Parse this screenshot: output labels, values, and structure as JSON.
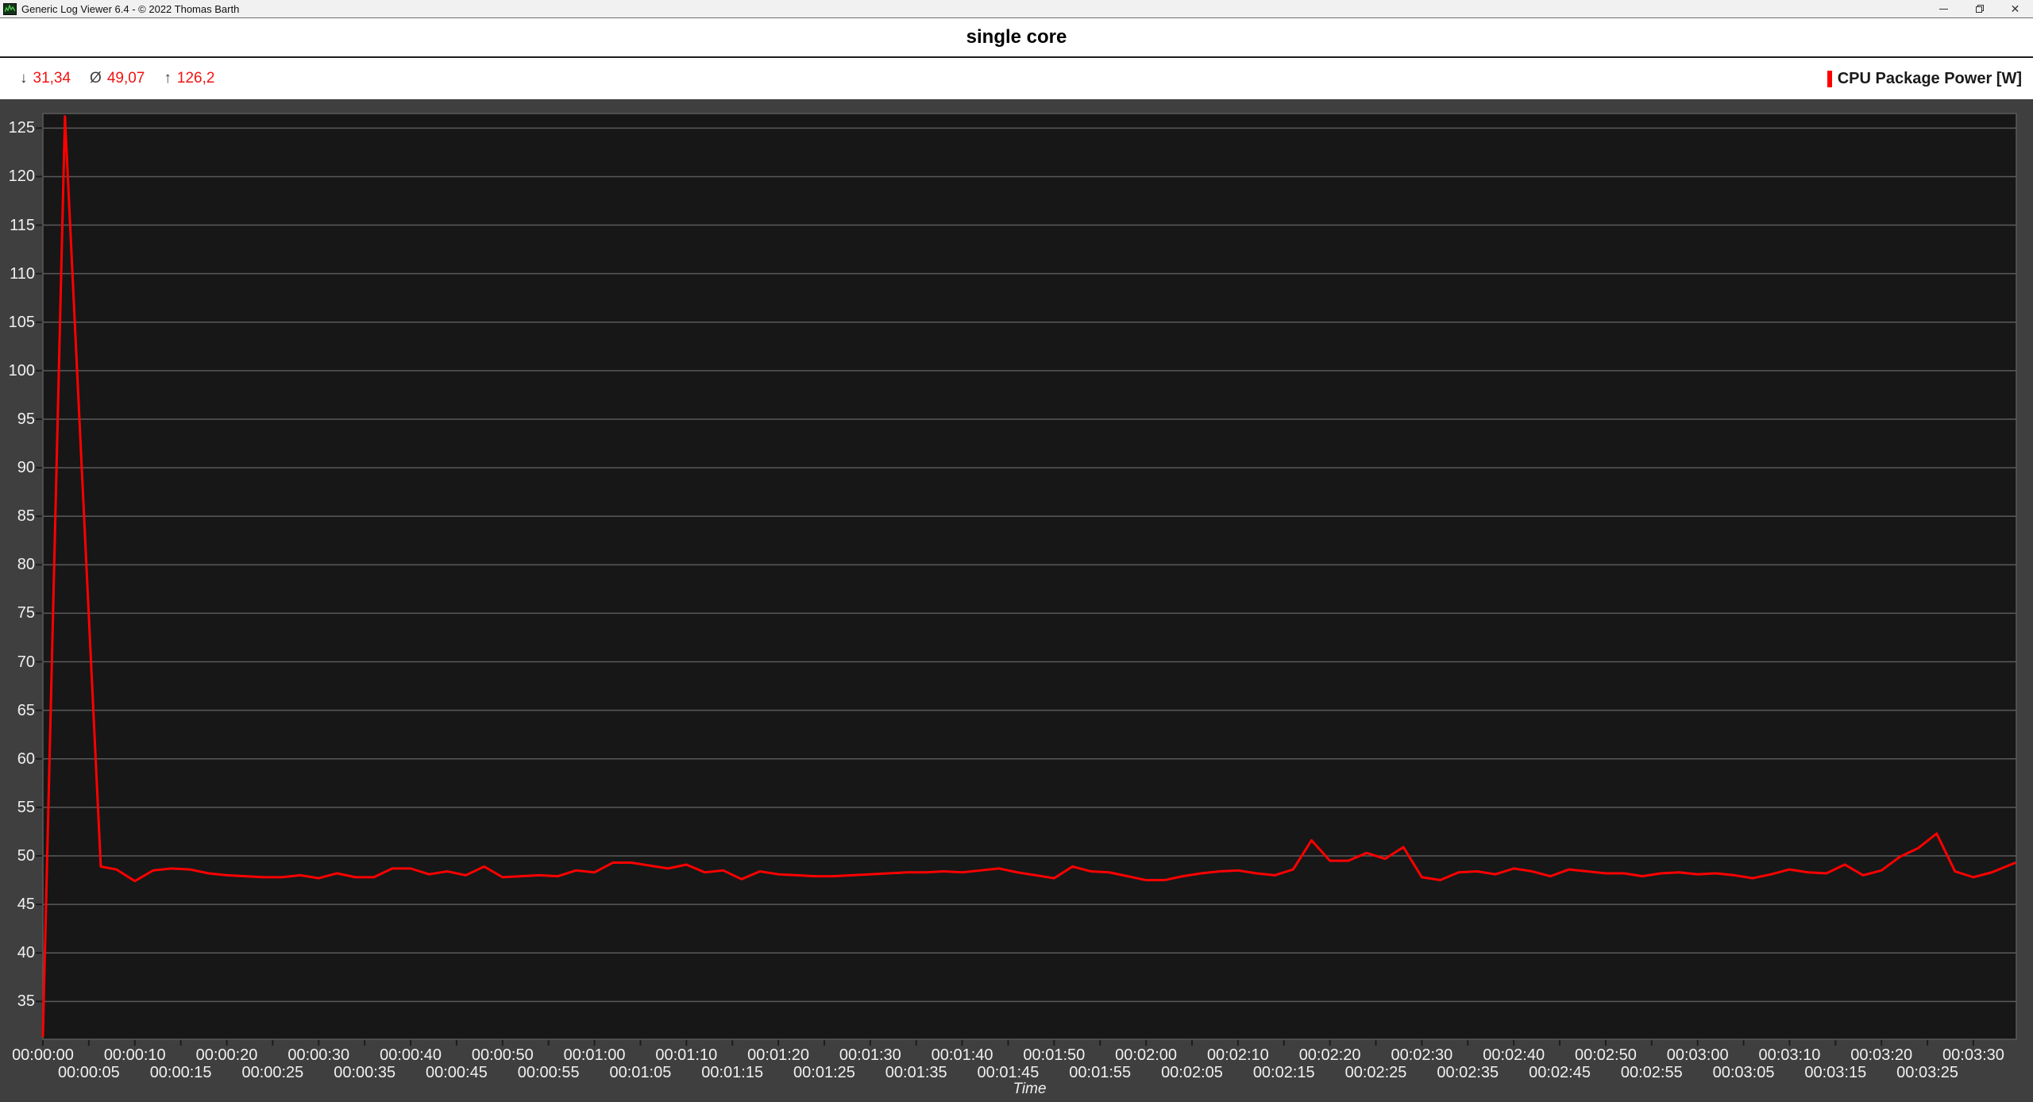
{
  "window": {
    "title": "Generic Log Viewer 6.4 - © 2022 Thomas Barth",
    "controls": {
      "close_glyph": "✕"
    }
  },
  "header": {
    "chart_title": "single core"
  },
  "stats": {
    "min_symbol": "↓",
    "min": "31,34",
    "avg_symbol": "Ø",
    "avg": "49,07",
    "max_symbol": "↑",
    "max": "126,2"
  },
  "legend": {
    "label": "CPU Package Power [W]",
    "color": "#ff0000"
  },
  "colors": {
    "series_red": "#ff0000",
    "panel_bg": "#3f3f3f",
    "plot_bg": "#171717",
    "gridline": "#5a5a5a",
    "tick_mark": "#1c1c1c",
    "axis_text": "#f0f0f0"
  },
  "chart_data": {
    "type": "line",
    "title": "single core",
    "xlabel": "Time",
    "ylim": [
      31.1,
      126.5
    ],
    "xlim_seconds": [
      0,
      214.7
    ],
    "grid": "horizontal-only",
    "legend_position": "top-right",
    "stats": {
      "min": 31.34,
      "avg": 49.07,
      "max": 126.2
    },
    "y_ticks": [
      125,
      120,
      115,
      110,
      105,
      100,
      95,
      90,
      85,
      80,
      75,
      70,
      65,
      60,
      55,
      50,
      45,
      40,
      35
    ],
    "x_tick_interval_s": 5,
    "x_tick_labels": [
      "00:00:00",
      "00:00:05",
      "00:00:10",
      "00:00:15",
      "00:00:20",
      "00:00:25",
      "00:00:30",
      "00:00:35",
      "00:00:40",
      "00:00:45",
      "00:00:50",
      "00:00:55",
      "00:01:00",
      "00:01:05",
      "00:01:10",
      "00:01:15",
      "00:01:20",
      "00:01:25",
      "00:01:30",
      "00:01:35",
      "00:01:40",
      "00:01:45",
      "00:01:50",
      "00:01:55",
      "00:02:00",
      "00:02:05",
      "00:02:10",
      "00:02:15",
      "00:02:20",
      "00:02:25",
      "00:02:30",
      "00:02:35",
      "00:02:40",
      "00:02:45",
      "00:02:50",
      "00:02:55",
      "00:03:00",
      "00:03:05",
      "00:03:10",
      "00:03:15",
      "00:03:20",
      "00:03:25",
      "00:03:30"
    ],
    "series": [
      {
        "name": "CPU Package Power [W]",
        "color": "#ff0000",
        "points": [
          [
            0,
            31.34
          ],
          [
            2.4,
            126.2
          ],
          [
            6.3,
            48.9
          ],
          [
            8,
            48.6
          ],
          [
            10,
            47.4
          ],
          [
            12,
            48.5
          ],
          [
            14,
            48.7
          ],
          [
            16,
            48.6
          ],
          [
            18,
            48.2
          ],
          [
            20,
            48.0
          ],
          [
            22,
            47.9
          ],
          [
            24,
            47.8
          ],
          [
            26,
            47.8
          ],
          [
            28,
            48.0
          ],
          [
            30,
            47.7
          ],
          [
            32,
            48.2
          ],
          [
            34,
            47.8
          ],
          [
            36,
            47.8
          ],
          [
            38,
            48.7
          ],
          [
            40,
            48.7
          ],
          [
            42,
            48.1
          ],
          [
            44,
            48.4
          ],
          [
            46,
            48.0
          ],
          [
            48,
            48.9
          ],
          [
            50,
            47.8
          ],
          [
            52,
            47.9
          ],
          [
            54,
            48.0
          ],
          [
            56,
            47.9
          ],
          [
            58,
            48.5
          ],
          [
            60,
            48.3
          ],
          [
            62,
            49.3
          ],
          [
            64,
            49.3
          ],
          [
            66,
            49.0
          ],
          [
            68,
            48.7
          ],
          [
            70,
            49.1
          ],
          [
            72,
            48.3
          ],
          [
            74,
            48.5
          ],
          [
            76,
            47.6
          ],
          [
            78,
            48.4
          ],
          [
            80,
            48.1
          ],
          [
            82,
            48.0
          ],
          [
            84,
            47.9
          ],
          [
            86,
            47.9
          ],
          [
            88,
            48.0
          ],
          [
            90,
            48.1
          ],
          [
            92,
            48.2
          ],
          [
            94,
            48.3
          ],
          [
            96,
            48.3
          ],
          [
            98,
            48.4
          ],
          [
            100,
            48.3
          ],
          [
            102,
            48.5
          ],
          [
            104,
            48.7
          ],
          [
            106,
            48.3
          ],
          [
            108,
            48.0
          ],
          [
            110,
            47.7
          ],
          [
            112,
            48.9
          ],
          [
            114,
            48.4
          ],
          [
            116,
            48.3
          ],
          [
            118,
            47.9
          ],
          [
            120,
            47.5
          ],
          [
            122,
            47.5
          ],
          [
            124,
            47.9
          ],
          [
            126,
            48.2
          ],
          [
            128,
            48.4
          ],
          [
            130,
            48.5
          ],
          [
            132,
            48.2
          ],
          [
            134,
            48.0
          ],
          [
            136,
            48.6
          ],
          [
            138,
            51.6
          ],
          [
            140,
            49.5
          ],
          [
            142,
            49.5
          ],
          [
            144,
            50.3
          ],
          [
            146,
            49.7
          ],
          [
            148,
            50.9
          ],
          [
            150,
            47.8
          ],
          [
            152,
            47.5
          ],
          [
            154,
            48.3
          ],
          [
            156,
            48.4
          ],
          [
            158,
            48.1
          ],
          [
            160,
            48.7
          ],
          [
            162,
            48.4
          ],
          [
            164,
            47.9
          ],
          [
            166,
            48.6
          ],
          [
            168,
            48.4
          ],
          [
            170,
            48.2
          ],
          [
            172,
            48.2
          ],
          [
            174,
            47.9
          ],
          [
            176,
            48.2
          ],
          [
            178,
            48.3
          ],
          [
            180,
            48.1
          ],
          [
            182,
            48.2
          ],
          [
            184,
            48.0
          ],
          [
            186,
            47.7
          ],
          [
            188,
            48.1
          ],
          [
            190,
            48.6
          ],
          [
            192,
            48.3
          ],
          [
            194,
            48.2
          ],
          [
            196,
            49.1
          ],
          [
            198,
            48.0
          ],
          [
            200,
            48.5
          ],
          [
            202,
            49.9
          ],
          [
            204,
            50.8
          ],
          [
            206,
            52.3
          ],
          [
            208,
            48.4
          ],
          [
            210,
            47.8
          ],
          [
            212,
            48.3
          ],
          [
            214.6,
            49.3
          ]
        ]
      }
    ]
  }
}
